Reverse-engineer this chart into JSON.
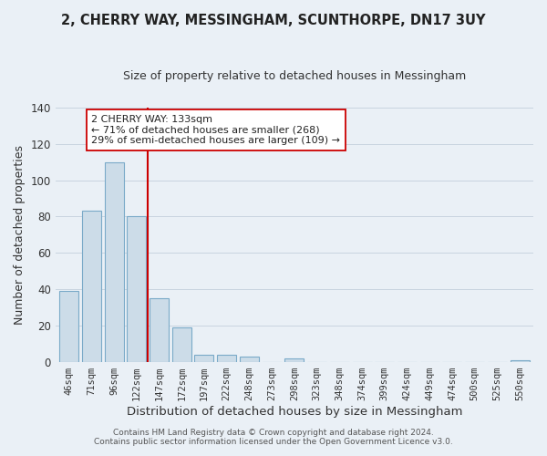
{
  "title": "2, CHERRY WAY, MESSINGHAM, SCUNTHORPE, DN17 3UY",
  "subtitle": "Size of property relative to detached houses in Messingham",
  "xlabel": "Distribution of detached houses by size in Messingham",
  "ylabel": "Number of detached properties",
  "bar_labels": [
    "46sqm",
    "71sqm",
    "96sqm",
    "122sqm",
    "147sqm",
    "172sqm",
    "197sqm",
    "222sqm",
    "248sqm",
    "273sqm",
    "298sqm",
    "323sqm",
    "348sqm",
    "374sqm",
    "399sqm",
    "424sqm",
    "449sqm",
    "474sqm",
    "500sqm",
    "525sqm",
    "550sqm"
  ],
  "bar_values": [
    39,
    83,
    110,
    80,
    35,
    19,
    4,
    4,
    3,
    0,
    2,
    0,
    0,
    0,
    0,
    0,
    0,
    0,
    0,
    0,
    1
  ],
  "bar_color": "#ccdce8",
  "bar_edge_color": "#7aaac8",
  "vline_color": "#cc0000",
  "ylim": [
    0,
    140
  ],
  "yticks": [
    0,
    20,
    40,
    60,
    80,
    100,
    120,
    140
  ],
  "annotation_title": "2 CHERRY WAY: 133sqm",
  "annotation_line1": "← 71% of detached houses are smaller (268)",
  "annotation_line2": "29% of semi-detached houses are larger (109) →",
  "annotation_box_color": "#ffffff",
  "annotation_box_edge": "#cc0000",
  "footer1": "Contains HM Land Registry data © Crown copyright and database right 2024.",
  "footer2": "Contains public sector information licensed under the Open Government Licence v3.0.",
  "background_color": "#eaf0f6",
  "plot_bg_color": "#eaf0f6",
  "grid_color": "#c8d4e0"
}
